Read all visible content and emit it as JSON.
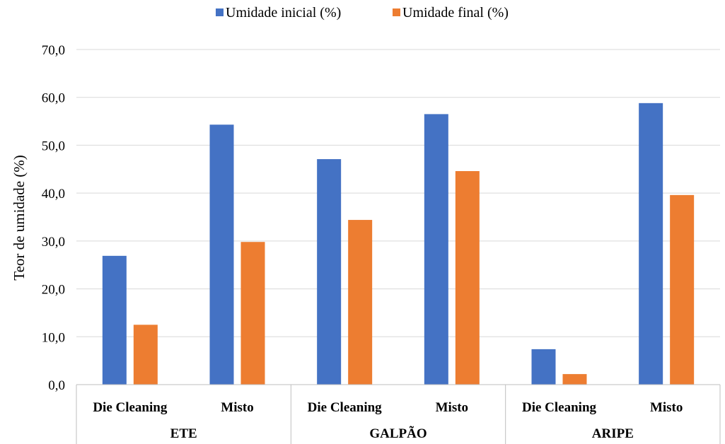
{
  "chart_data": {
    "type": "bar",
    "title": "",
    "ylabel": "Teor de umidade (%)",
    "ylim": [
      0,
      70
    ],
    "yticks": [
      "0,0",
      "10,0",
      "20,0",
      "30,0",
      "40,0",
      "50,0",
      "60,0",
      "70,0"
    ],
    "grid": true,
    "legend_position": "top",
    "groups": [
      "ETE",
      "GALPÃO",
      "ARIPE"
    ],
    "categories": [
      "Die Cleaning",
      "Misto",
      "Die Cleaning",
      "Misto",
      "Die Cleaning",
      "Misto"
    ],
    "series": [
      {
        "name": "Umidade inicial (%)",
        "color": "#4472c4",
        "values": [
          26.9,
          54.3,
          47.1,
          56.5,
          7.4,
          58.8
        ]
      },
      {
        "name": "Umidade final (%)",
        "color": "#ed7d31",
        "values": [
          12.5,
          29.8,
          34.4,
          44.6,
          2.2,
          39.6
        ]
      }
    ]
  }
}
